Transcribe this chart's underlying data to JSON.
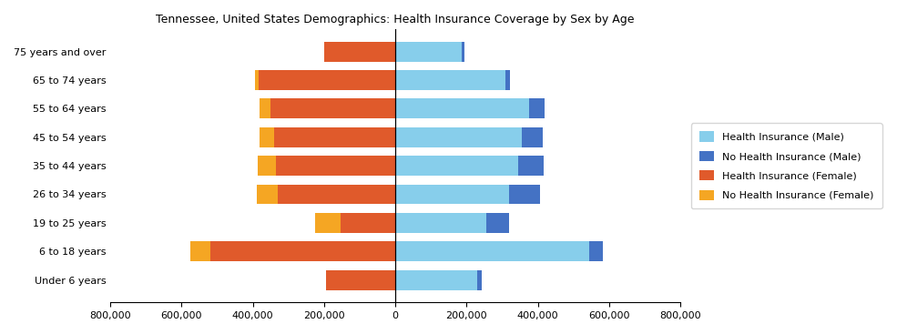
{
  "title": "Tennessee, United States Demographics: Health Insurance Coverage by Sex by Age",
  "age_groups": [
    "Under 6 years",
    "6 to 18 years",
    "19 to 25 years",
    "26 to 34 years",
    "35 to 44 years",
    "45 to 54 years",
    "55 to 64 years",
    "65 to 74 years",
    "75 years and over"
  ],
  "health_insurance_male": [
    230000,
    545000,
    255000,
    320000,
    345000,
    355000,
    375000,
    310000,
    185000
  ],
  "no_health_insurance_male": [
    12000,
    38000,
    65000,
    85000,
    72000,
    58000,
    45000,
    12000,
    8000
  ],
  "health_insurance_female": [
    195000,
    520000,
    155000,
    330000,
    335000,
    340000,
    350000,
    385000,
    200000
  ],
  "no_health_insurance_female": [
    0,
    55000,
    70000,
    58000,
    52000,
    42000,
    32000,
    8000,
    0
  ],
  "colors": {
    "health_insurance_male": "#87CEEB",
    "no_health_insurance_male": "#4472C4",
    "health_insurance_female": "#E05A2B",
    "no_health_insurance_female": "#F5A623"
  },
  "xlim": [
    -800000,
    800000
  ],
  "xticks": [
    -800000,
    -600000,
    -400000,
    -200000,
    0,
    200000,
    400000,
    600000,
    800000
  ],
  "xticklabels": [
    "800,000",
    "600,000",
    "400,000",
    "200,000",
    "0",
    "200,000",
    "400,000",
    "600,000",
    "800,000"
  ],
  "legend_labels": [
    "Health Insurance (Male)",
    "No Health Insurance (Male)",
    "Health Insurance (Female)",
    "No Health Insurance (Female)"
  ],
  "bar_height": 0.7,
  "title_fontsize": 9,
  "tick_fontsize": 8,
  "legend_fontsize": 8
}
